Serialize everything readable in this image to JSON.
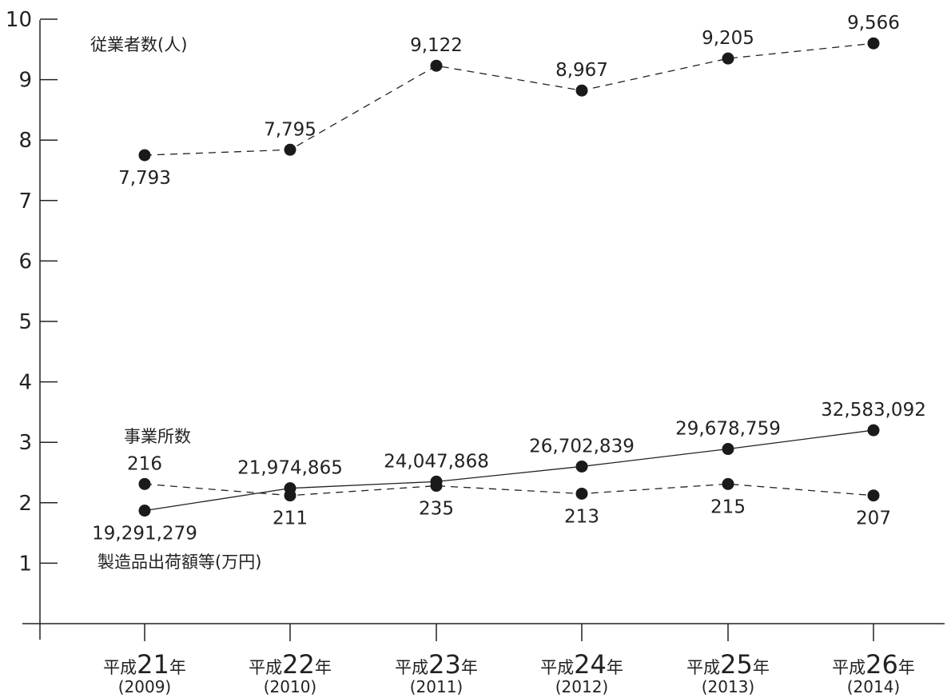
{
  "chart_data": {
    "type": "line",
    "categories": [
      {
        "era": "平成",
        "num": "21",
        "suffix": "年",
        "greg": "(2009)"
      },
      {
        "era": "平成",
        "num": "22",
        "suffix": "年",
        "greg": "(2010)"
      },
      {
        "era": "平成",
        "num": "23",
        "suffix": "年",
        "greg": "(2011)"
      },
      {
        "era": "平成",
        "num": "24",
        "suffix": "年",
        "greg": "(2012)"
      },
      {
        "era": "平成",
        "num": "25",
        "suffix": "年",
        "greg": "(2013)"
      },
      {
        "era": "平成",
        "num": "26",
        "suffix": "年",
        "greg": "(2014)"
      }
    ],
    "y_ticks": [
      "1",
      "2",
      "3",
      "4",
      "5",
      "6",
      "7",
      "8",
      "9",
      "10"
    ],
    "ylim": [
      0,
      10
    ],
    "grid": false,
    "series": [
      {
        "name": "従業者数(人)",
        "line_style": "dashed",
        "plot_values": [
          7.75,
          7.84,
          9.23,
          8.82,
          9.35,
          9.6
        ],
        "labels": [
          "7,793",
          "7,795",
          "9,122",
          "8,967",
          "9,205",
          "9,566"
        ],
        "label_positions": [
          "below",
          "above",
          "above",
          "above",
          "above",
          "above"
        ]
      },
      {
        "name": "事業所数",
        "line_style": "dashed",
        "plot_values": [
          2.31,
          2.12,
          2.28,
          2.15,
          2.31,
          2.12
        ],
        "labels": [
          "216",
          "211",
          "235",
          "213",
          "215",
          "207"
        ],
        "label_positions": [
          "above",
          "below",
          "below",
          "below",
          "below",
          "below"
        ]
      },
      {
        "name": "製造品出荷額等(万円)",
        "line_style": "solid",
        "plot_values": [
          1.87,
          2.24,
          2.35,
          2.6,
          2.89,
          3.2
        ],
        "labels": [
          "19,291,279",
          "21,974,865",
          "24,047,868",
          "26,702,839",
          "29,678,759",
          "32,583,092"
        ],
        "label_positions": [
          "below",
          "above",
          "above",
          "above",
          "above",
          "above"
        ]
      }
    ]
  }
}
